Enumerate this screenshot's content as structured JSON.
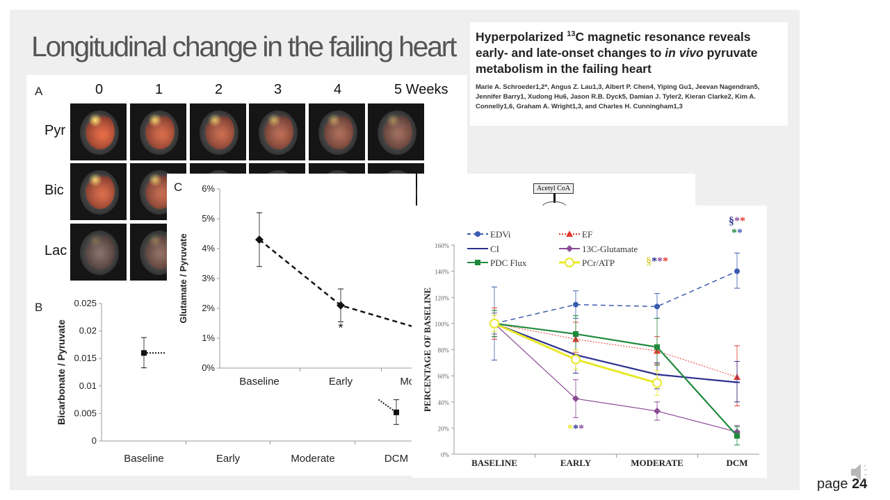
{
  "slide": {
    "title": "Longitudinal change in the failing heart",
    "page_label": "page",
    "page_number": "24"
  },
  "paper": {
    "title_pre": "Hyperpolarized ",
    "title_sup": "13",
    "title_post": "C magnetic resonance reveals early- and late-onset changes to ",
    "title_italic": "in vivo",
    "title_end": " pyruvate metabolism in the failing heart",
    "authors": "Marie A. Schroeder1,2*, Angus Z. Lau1,3, Albert P. Chen4, Yiping Gu1, Jeevan Nagendran5, Jennifer Barry1, Xudong Hu6, Jason R.B. Dyck5, Damian J. Tyler2, Kieran Clarke2, Kim A. Connelly1,6, Graham A. Wright1,3, and Charles H. Cunningham1,3"
  },
  "panel_a": {
    "letter": "A",
    "weeks": [
      "0",
      "1",
      "2",
      "3",
      "4",
      "5  Weeks"
    ],
    "rows": [
      "Pyr",
      "Bic",
      "Lac"
    ]
  },
  "diagram": {
    "acetyl_label": "Acetyl CoA"
  },
  "chart_data": [
    {
      "id": "B",
      "type": "line",
      "panel_letter": "B",
      "ylabel": "Bicarbonate / Pyruvate",
      "categories": [
        "Baseline",
        "Early",
        "Moderate",
        "DCM"
      ],
      "yticks": [
        "0",
        "0.005",
        "0.01",
        "0.015",
        "0.02",
        "0.025"
      ],
      "ylim": [
        0,
        0.025
      ],
      "series": [
        {
          "values": [
            0.016,
            null,
            null,
            0.0052
          ],
          "err_low": [
            0.0133,
            null,
            null,
            0.003
          ],
          "err_high": [
            0.0188,
            null,
            null,
            0.0075
          ],
          "marker": "square",
          "line": "dotted",
          "color": "#111111"
        }
      ]
    },
    {
      "id": "C",
      "type": "line",
      "panel_letter": "C",
      "ylabel": "Glutamate / Pyruvate",
      "categories": [
        "Baseline",
        "Early",
        "Moderate"
      ],
      "yticks": [
        "0%",
        "1%",
        "2%",
        "3%",
        "4%",
        "5%",
        "6%"
      ],
      "ylim": [
        0,
        6
      ],
      "series": [
        {
          "values": [
            4.3,
            2.1,
            1.3
          ],
          "err_low": [
            3.4,
            1.55,
            null
          ],
          "err_high": [
            5.2,
            2.65,
            null
          ],
          "marker": "diamond",
          "line": "dashed",
          "color": "#111111"
        }
      ],
      "annotations": [
        {
          "category": "Early",
          "text": "*"
        }
      ]
    },
    {
      "id": "D",
      "type": "line",
      "ylabel": "Percentage of baseline",
      "categories": [
        "Baseline",
        "Early",
        "Moderate",
        "DCM"
      ],
      "yticks": [
        "0%",
        "20%",
        "40%",
        "60%",
        "80%",
        "100%",
        "120%",
        "140%",
        "160%"
      ],
      "ylim": [
        0,
        160
      ],
      "legend": "top-left",
      "series": [
        {
          "name": "EDVi",
          "color": "#3a5bb0",
          "marker": "circle",
          "line": "dashed",
          "values": [
            100,
            114.5,
            113,
            140
          ],
          "err_low": [
            72,
            104,
            104,
            127
          ],
          "err_high": [
            128,
            125,
            123,
            154
          ]
        },
        {
          "name": "EF",
          "color": "#e53a2e",
          "marker": "triangle",
          "line": "thin-dotted",
          "values": [
            100,
            88,
            79,
            59
          ],
          "err_low": [
            88,
            78,
            69,
            37
          ],
          "err_high": [
            112,
            101,
            90,
            83
          ]
        },
        {
          "name": "CI",
          "color": "#2b2f8e",
          "marker": "bar",
          "line": "solid",
          "values": [
            100,
            76,
            61,
            55
          ],
          "err_low": [
            90,
            62,
            50,
            40
          ],
          "err_high": [
            110,
            90,
            70,
            71
          ]
        },
        {
          "name": "13C-Glutamate",
          "color": "#8a4a96",
          "marker": "diamond",
          "line": "thin",
          "values": [
            100,
            42.5,
            33,
            17
          ],
          "err_low": [
            92,
            28,
            26,
            14
          ],
          "err_high": [
            108,
            57,
            40,
            22
          ]
        },
        {
          "name": "PDC Flux",
          "color": "#1f8a3c",
          "marker": "square",
          "line": "solid",
          "values": [
            100,
            92,
            82,
            14
          ],
          "err_low": [
            90,
            80,
            68,
            7
          ],
          "err_high": [
            110,
            106,
            104,
            21
          ]
        },
        {
          "name": "PCr/ATP",
          "color": "#e8e82a",
          "marker": "open-circle",
          "line": "thick",
          "values": [
            100,
            72.5,
            54.5,
            null
          ],
          "err_low": [
            94,
            65,
            45,
            null
          ],
          "err_high": [
            106,
            80,
            64,
            null
          ]
        }
      ],
      "annotations": [
        {
          "category": "Early",
          "value": 17,
          "parts": [
            {
              "t": "*",
              "c": "#e8e82a"
            },
            {
              "t": "*",
              "c": "#2b2f8e"
            },
            {
              "t": "*",
              "c": "#8a4a96"
            }
          ]
        },
        {
          "category": "Moderate",
          "value": 145,
          "parts": [
            {
              "t": "§",
              "c": "#d8d040"
            },
            {
              "t": "*",
              "c": "#2b2f8e"
            },
            {
              "t": "*",
              "c": "#8a4a96"
            },
            {
              "t": "*",
              "c": "#e53a2e"
            }
          ]
        },
        {
          "category": "DCM",
          "value": 176,
          "parts": [
            {
              "t": "§",
              "c": "#2b2f8e"
            },
            {
              "t": "*",
              "c": "#8a4a96"
            },
            {
              "t": "*",
              "c": "#e53a2e"
            }
          ]
        },
        {
          "category": "DCM",
          "value": 167,
          "parts": [
            {
              "t": "*",
              "c": "#1f8a3c"
            },
            {
              "t": "*",
              "c": "#3a5bb0"
            }
          ]
        }
      ]
    }
  ],
  "icons": {
    "speaker": "speaker-icon"
  }
}
